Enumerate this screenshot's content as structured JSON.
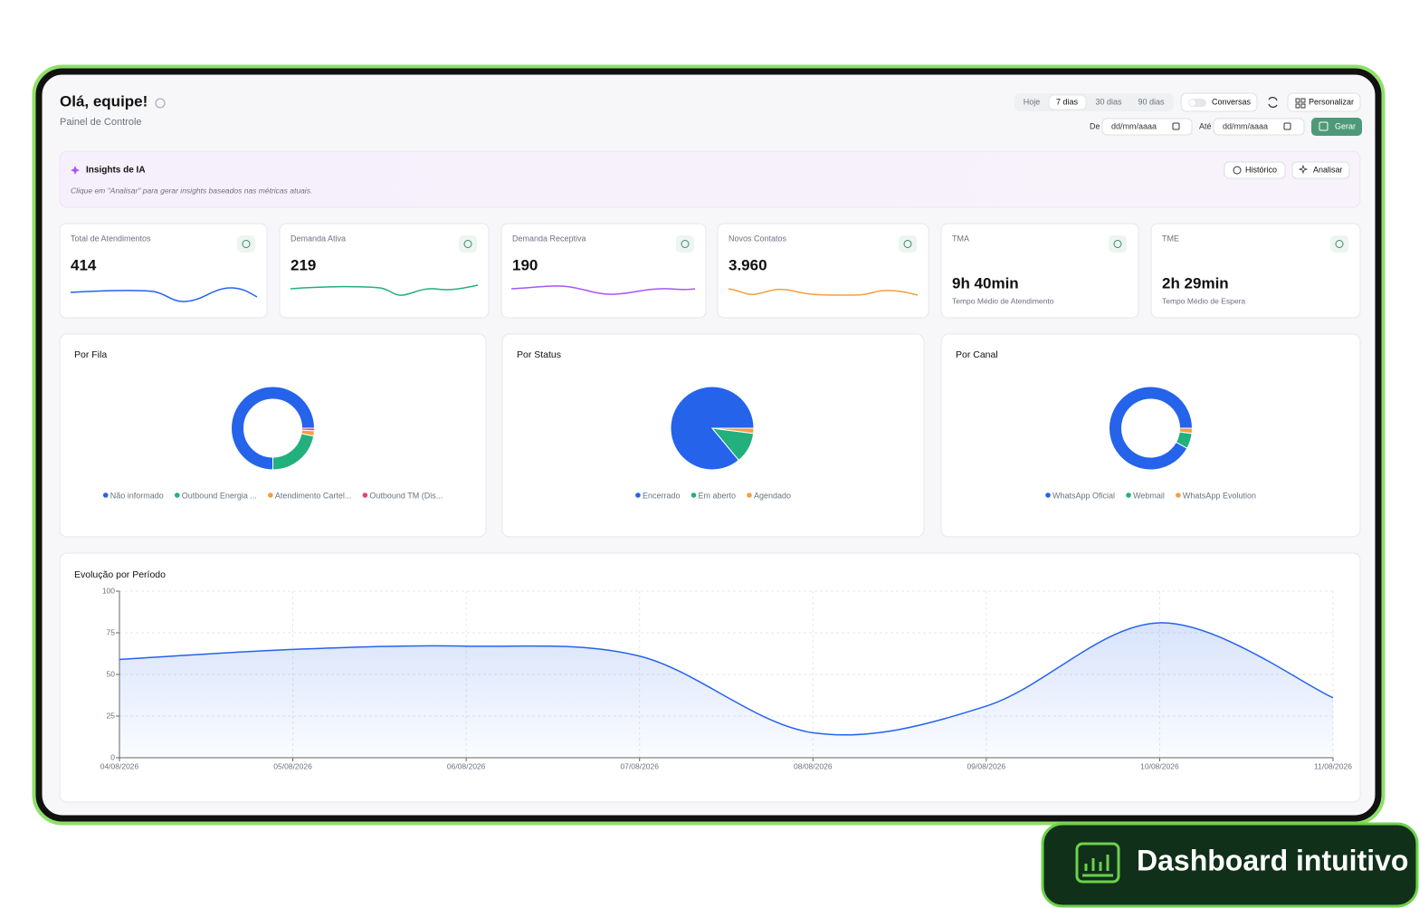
{
  "header": {
    "title": "Olá, equipe!",
    "subtitle": "Painel de Controle"
  },
  "controls": {
    "periods": [
      "Hoje",
      "7 dias",
      "30 dias",
      "90 dias"
    ],
    "toggle_label": "Conversas",
    "customize": "Personalizar",
    "from_label": "De",
    "to_label": "Até",
    "date_placeholder": "dd/mm/aaaa",
    "generate": "Gerar"
  },
  "insights": {
    "title": "Insights de IA",
    "text": "Clique em \"Analisar\" para gerar insights baseados nas métricas atuais.",
    "buttons": [
      "Histórico",
      "Analisar"
    ]
  },
  "kpis": [
    {
      "label": "Total de Atendimentos",
      "value": "414"
    },
    {
      "label": "Demanda Ativa",
      "value": "219"
    },
    {
      "label": "Demanda Receptiva",
      "value": "190"
    },
    {
      "label": "Novos Contatos",
      "value": "3.960"
    },
    {
      "label": "TMA",
      "value": "9h 40min",
      "caption": "Tempo Médio de Atendimento"
    },
    {
      "label": "TME",
      "value": "2h 29min",
      "caption": "Tempo Médio de Espera"
    }
  ],
  "chart_data": [
    {
      "type": "pie",
      "title": "Por Fila",
      "donut": true,
      "categories": [
        "Não informado",
        "Outbound Energia ...",
        "Atendimento Cartel...",
        "Outbound TM (Dis..."
      ],
      "values": [
        75,
        22,
        2,
        1
      ],
      "colors": [
        "#2563eb",
        "#22b07d",
        "#f59e42",
        "#e0457b"
      ]
    },
    {
      "type": "pie",
      "title": "Por Status",
      "donut": false,
      "categories": [
        "Encerrado",
        "Em aberto",
        "Agendado"
      ],
      "values": [
        86,
        12,
        2
      ],
      "colors": [
        "#2563eb",
        "#22b07d",
        "#f59e42"
      ]
    },
    {
      "type": "pie",
      "title": "Por Canal",
      "donut": true,
      "categories": [
        "WhatsApp Oficial",
        "Webmail",
        "WhatsApp Evolution"
      ],
      "values": [
        92,
        6,
        2
      ],
      "colors": [
        "#2563eb",
        "#22b07d",
        "#f59e42"
      ]
    },
    {
      "type": "line",
      "title": "Evolução por Período",
      "categories": [
        "04/08/2026",
        "05/08/2026",
        "06/08/2026",
        "07/08/2026",
        "08/08/2026",
        "09/08/2026",
        "10/08/2026",
        "11/08/2026"
      ],
      "values": [
        59,
        65,
        67,
        61,
        15,
        31,
        81,
        36
      ],
      "color": "#2563eb",
      "area": true,
      "ylim": [
        0,
        100
      ],
      "yticks": [
        0,
        25,
        50,
        75,
        100
      ],
      "grid": true
    }
  ],
  "badge": {
    "text": "Dashboard intuitivo"
  }
}
